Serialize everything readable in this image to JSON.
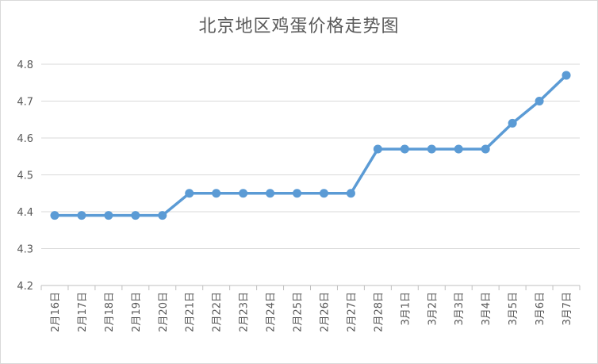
{
  "chart_data": {
    "type": "line",
    "title": "北京地区鸡蛋价格走势图",
    "xlabel": "",
    "ylabel": "",
    "categories": [
      "2月16日",
      "2月17日",
      "2月18日",
      "2月19日",
      "2月20日",
      "2月21日",
      "2月22日",
      "2月23日",
      "2月24日",
      "2月25日",
      "2月26日",
      "2月27日",
      "2月28日",
      "3月1日",
      "3月2日",
      "3月3日",
      "3月4日",
      "3月5日",
      "3月6日",
      "3月7日"
    ],
    "series": [
      {
        "values": [
          4.39,
          4.39,
          4.39,
          4.39,
          4.39,
          4.45,
          4.45,
          4.45,
          4.45,
          4.45,
          4.45,
          4.45,
          4.57,
          4.57,
          4.57,
          4.57,
          4.57,
          4.64,
          4.7,
          4.77
        ]
      }
    ],
    "ylim": [
      4.2,
      4.8
    ],
    "yticks": [
      "4.2",
      "4.3",
      "4.4",
      "4.5",
      "4.6",
      "4.7",
      "4.8"
    ],
    "grid": true,
    "legend": "none",
    "line_color": "#5b9bd5",
    "grid_color": "#d9d9d9",
    "text_color": "#595959"
  }
}
